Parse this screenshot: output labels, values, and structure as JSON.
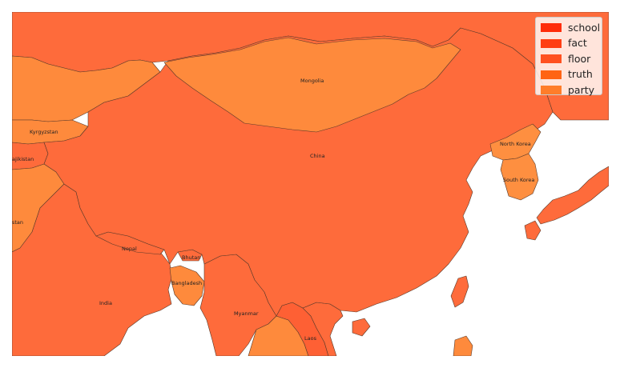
{
  "legend": {
    "items": [
      {
        "label": "school",
        "color": "#ff2c0a"
      },
      {
        "label": "fact",
        "color": "#ff3d12"
      },
      {
        "label": "floor",
        "color": "#ff5020"
      },
      {
        "label": "truth",
        "color": "#ff6414"
      },
      {
        "label": "party",
        "color": "#ff7d2a"
      }
    ]
  },
  "colors": {
    "china": "#fe6b3b",
    "mongolia": "#fe8a3c",
    "russia": "#fe6b3b",
    "india": "#fe6b3b",
    "kazakhstan": "#fe8a3c",
    "korea": "#fe8f40",
    "japan": "#fe6b3b",
    "myanmar": "#fe8a3c",
    "laos": "#fe6034",
    "vietnam": "#fe6b3b",
    "ocean": "#ffffff"
  },
  "countries": {
    "mongolia": "Mongolia",
    "china": "China",
    "kyrgyzstan": "Kyrgyzstan",
    "tajikistan": "ajikistan",
    "pakistan": "stan",
    "north_korea": "North Korea",
    "south_korea": "South Korea",
    "nepal": "Nepal",
    "bhutan": "Bhutan",
    "bangladesh": "Bangladesh",
    "india": "India",
    "myanmar": "Myanmar",
    "laos": "Laos"
  }
}
